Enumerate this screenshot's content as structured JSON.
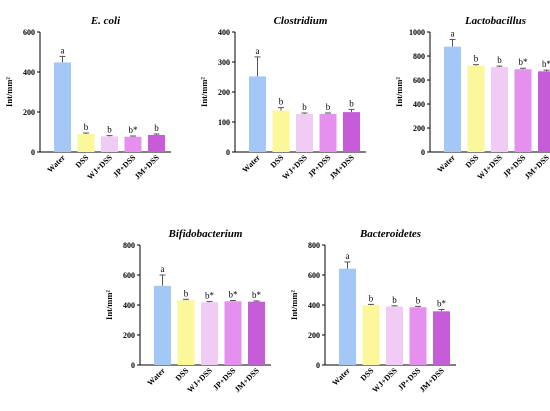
{
  "chart_data": [
    {
      "type": "bar",
      "title": "E. coli",
      "ylabel": "Int/mm²",
      "ylim": [
        0,
        600
      ],
      "yticks": [
        0,
        200,
        400,
        600
      ],
      "categories": [
        "Water",
        "DSS",
        "WJ+DSS",
        "JP+DSS",
        "JM+DSS"
      ],
      "values": [
        448,
        90,
        78,
        76,
        85
      ],
      "errors": [
        30,
        5,
        4,
        4,
        5
      ],
      "labels": [
        "a",
        "b",
        "b",
        "b*",
        "b"
      ],
      "colors": [
        "#a3c8f5",
        "#fbf79a",
        "#f0ccf5",
        "#e590ef",
        "#c65cd8"
      ]
    },
    {
      "type": "bar",
      "title": "Clostridium",
      "ylabel": "Int/mm²",
      "ylim": [
        0,
        400
      ],
      "yticks": [
        0,
        100,
        200,
        300,
        400
      ],
      "categories": [
        "Water",
        "DSS",
        "WJ+DSS",
        "JP+DSS",
        "JM+DSS"
      ],
      "values": [
        252,
        138,
        127,
        127,
        133
      ],
      "errors": [
        65,
        10,
        3,
        3,
        9
      ],
      "labels": [
        "a",
        "b",
        "b",
        "b",
        "b"
      ],
      "colors": [
        "#a3c8f5",
        "#fbf79a",
        "#f0ccf5",
        "#e590ef",
        "#c65cd8"
      ]
    },
    {
      "type": "bar",
      "title": "Lactobacillus",
      "ylabel": "Int/mm²",
      "ylim": [
        0,
        1000
      ],
      "yticks": [
        0,
        200,
        400,
        600,
        800,
        1000
      ],
      "categories": [
        "Water",
        "DSS",
        "WJ+DSS",
        "JP+DSS",
        "JM+DSS"
      ],
      "values": [
        878,
        720,
        708,
        690,
        672
      ],
      "errors": [
        60,
        8,
        8,
        8,
        10
      ],
      "labels": [
        "a",
        "b",
        "b",
        "b*",
        "b*"
      ],
      "colors": [
        "#a3c8f5",
        "#fbf79a",
        "#f0ccf5",
        "#e590ef",
        "#c65cd8"
      ]
    },
    {
      "type": "bar",
      "title": "Bifidobacterium",
      "ylabel": "Int/mm²",
      "ylim": [
        0,
        800
      ],
      "yticks": [
        0,
        200,
        400,
        600,
        800
      ],
      "categories": [
        "Water",
        "DSS",
        "WJ+DSS",
        "JP+DSS",
        "JM+DSS"
      ],
      "values": [
        528,
        432,
        418,
        425,
        422
      ],
      "errors": [
        72,
        6,
        5,
        5,
        5
      ],
      "labels": [
        "a",
        "b",
        "b*",
        "b*",
        "b*"
      ],
      "colors": [
        "#a3c8f5",
        "#fbf79a",
        "#f0ccf5",
        "#e590ef",
        "#c65cd8"
      ]
    },
    {
      "type": "bar",
      "title": "Bacteroidetes",
      "ylabel": "Int/mm²",
      "ylim": [
        0,
        800
      ],
      "yticks": [
        0,
        200,
        400,
        600,
        800
      ],
      "categories": [
        "Water",
        "DSS",
        "WJ+DSS",
        "JP+DSS",
        "JM+DSS"
      ],
      "values": [
        642,
        398,
        390,
        385,
        358
      ],
      "errors": [
        45,
        6,
        5,
        6,
        12
      ],
      "labels": [
        "a",
        "b",
        "b",
        "b",
        "b*"
      ],
      "colors": [
        "#a3c8f5",
        "#fbf79a",
        "#f0ccf5",
        "#e590ef",
        "#c65cd8"
      ]
    }
  ]
}
